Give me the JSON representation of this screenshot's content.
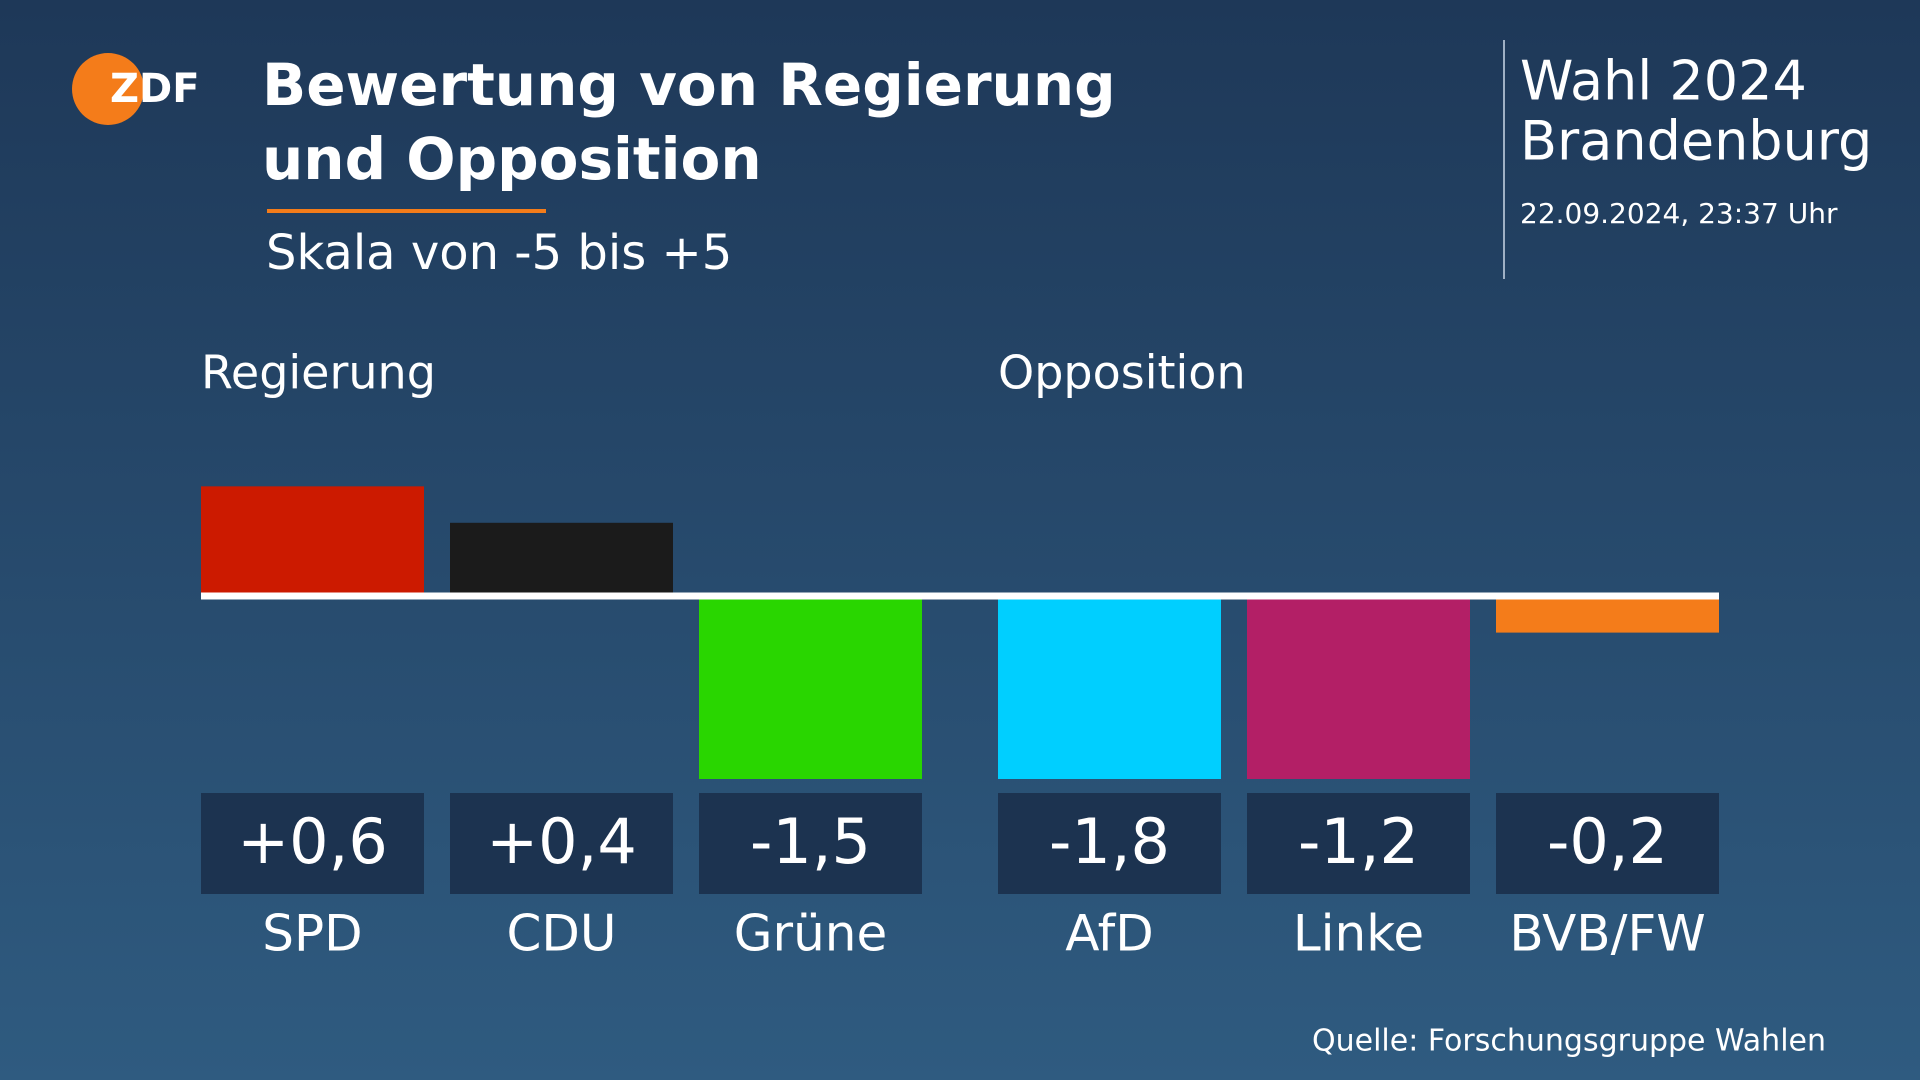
{
  "logo": "ZDF",
  "chart_data": {
    "type": "bar",
    "title": "Bewertung von Regierung und Opposition",
    "subtitle": "Skala von -5 bis +5",
    "election": "Wahl 2024",
    "region": "Brandenburg",
    "timestamp": "22.09.2024, 23:37 Uhr",
    "source": "Quelle: Forschungsgruppe Wahlen",
    "ylim": [
      -1,
      0.6
    ],
    "groups": [
      {
        "name": "Regierung",
        "categories": [
          "SPD",
          "CDU",
          "Grüne"
        ],
        "values": [
          0.6,
          0.4,
          -1.5
        ],
        "value_labels": [
          "+0,6",
          "+0,4",
          "-1,5"
        ],
        "colors": [
          "#cc1a00",
          "#1b1b1b",
          "#29d600"
        ]
      },
      {
        "name": "Opposition",
        "categories": [
          "AfD",
          "Linke",
          "BVB/FW"
        ],
        "values": [
          -1.8,
          -1.2,
          -0.2
        ],
        "value_labels": [
          "-1,8",
          "-1,2",
          "-0,2"
        ],
        "colors": [
          "#00cfff",
          "#b31f66",
          "#f47c1a"
        ]
      }
    ]
  }
}
